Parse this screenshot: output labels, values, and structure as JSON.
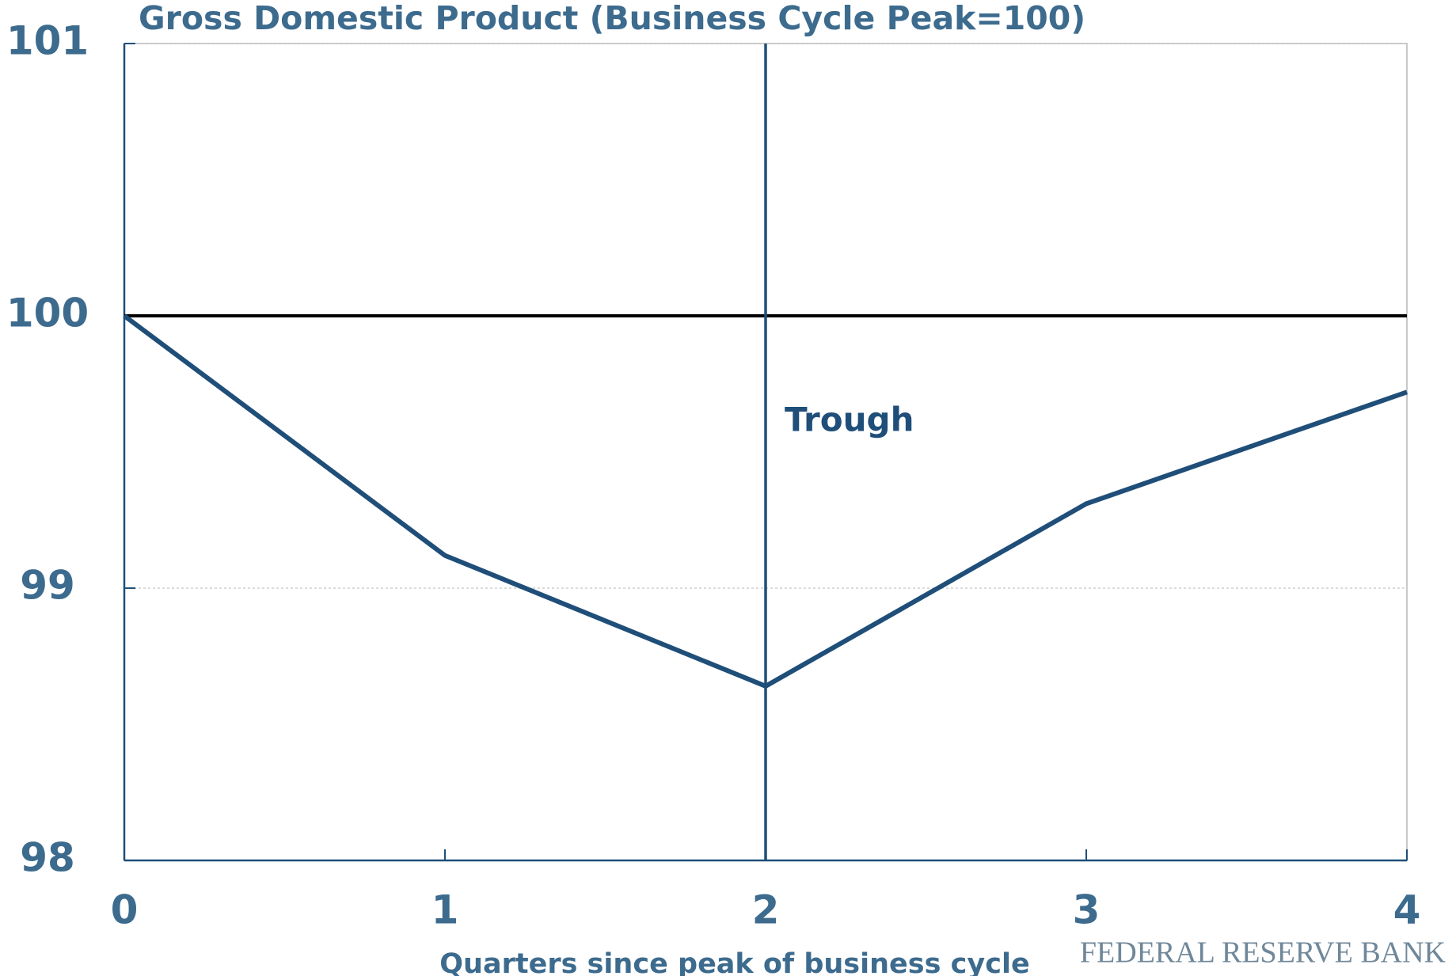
{
  "chart_data": {
    "type": "line",
    "title": "Gross Domestic Product (Business Cycle Peak=100)",
    "x_label": "Quarters since peak of business cycle",
    "annotation": "Trough",
    "source": "FEDERAL RESERVE BANK",
    "x": [
      0,
      1,
      2,
      3,
      4
    ],
    "series": [
      {
        "color": "#1f4e79",
        "values": [
          100,
          99.12,
          98.64,
          99.31,
          99.72
        ]
      }
    ],
    "reference_y": 100,
    "reference_x": 2,
    "xlim": [
      0,
      4
    ],
    "xticks": [
      0,
      1,
      2,
      3,
      4
    ],
    "ylim": [
      98,
      101
    ],
    "yticks": [
      98,
      99,
      100,
      101
    ],
    "grid": true
  }
}
